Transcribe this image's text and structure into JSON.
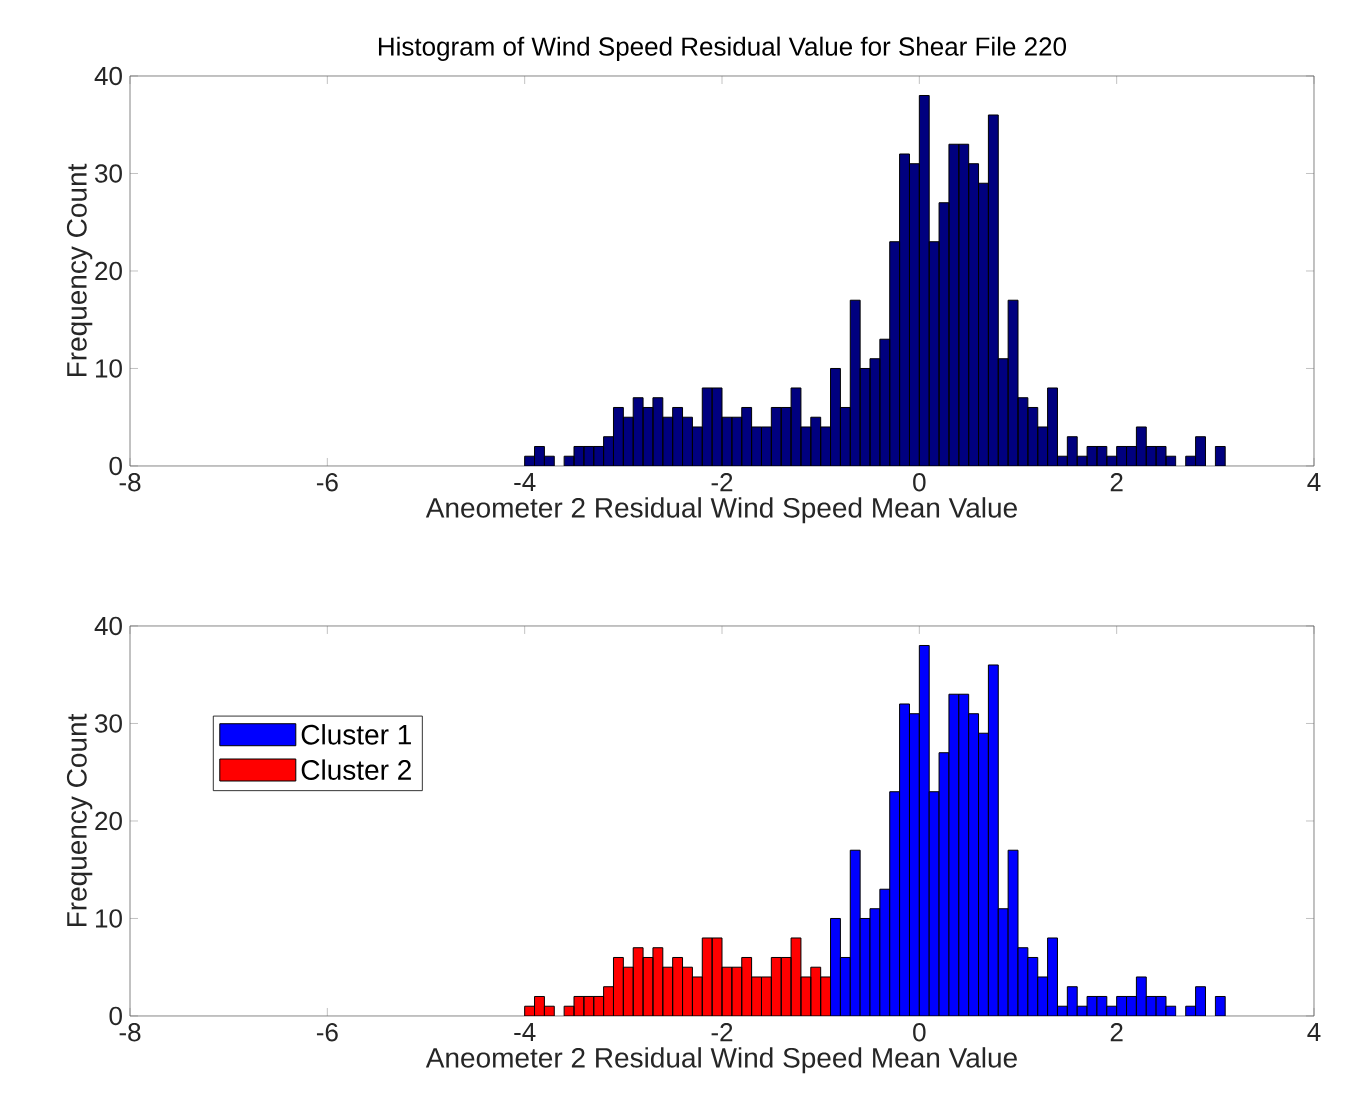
{
  "chart_data": [
    {
      "type": "histogram",
      "title": "Histogram of Wind Speed Residual Value for Shear File 220",
      "xlabel": "Aneometer 2 Residual Wind Speed Mean Value",
      "ylabel": "Frequency Count",
      "bins": [
        -4.0,
        -3.9,
        -3.8,
        -3.7,
        -3.6,
        -3.5,
        -3.4,
        -3.3,
        -3.2,
        -3.1,
        -3.0,
        -2.9,
        -2.8,
        -2.7,
        -2.6,
        -2.5,
        -2.4,
        -2.3,
        -2.2,
        -2.1,
        -2.0,
        -1.9,
        -1.8,
        -1.7,
        -1.6,
        -1.5,
        -1.4,
        -1.3,
        -1.2,
        -1.1,
        -1.0,
        -0.9,
        -0.8,
        -0.7,
        -0.6,
        -0.5,
        -0.4,
        -0.3,
        -0.2,
        -0.1,
        0.0,
        0.1,
        0.2,
        0.3,
        0.4,
        0.5,
        0.6,
        0.7,
        0.8,
        0.9,
        1.0,
        1.1,
        1.2,
        1.3,
        1.4,
        1.5,
        1.6,
        1.7,
        1.8,
        1.9,
        2.0,
        2.1,
        2.2,
        2.3,
        2.4,
        2.5,
        2.6,
        2.7,
        2.8,
        2.9,
        3.0,
        3.1
      ],
      "values": [
        1,
        2,
        1,
        0,
        1,
        2,
        2,
        2,
        3,
        6,
        5,
        7,
        6,
        7,
        5,
        6,
        5,
        4,
        8,
        8,
        5,
        5,
        6,
        4,
        4,
        6,
        6,
        8,
        4,
        5,
        4,
        10,
        6,
        17,
        10,
        11,
        13,
        23,
        32,
        31,
        38,
        23,
        27,
        33,
        33,
        31,
        29,
        36,
        11,
        17,
        7,
        6,
        4,
        8,
        1,
        3,
        1,
        2,
        2,
        1,
        2,
        2,
        4,
        2,
        2,
        1,
        0,
        1,
        3,
        0,
        2
      ],
      "color": "#00007f",
      "xlim": [
        -8,
        4
      ],
      "xticks": [
        -8,
        -6,
        -4,
        -2,
        0,
        2,
        4
      ],
      "ylim": [
        0,
        40
      ],
      "yticks": [
        0,
        10,
        20,
        30,
        40
      ]
    },
    {
      "type": "histogram",
      "xlabel": "Aneometer 2 Residual Wind Speed Mean Value",
      "ylabel": "Frequency Count",
      "bins": [
        -4.0,
        -3.9,
        -3.8,
        -3.7,
        -3.6,
        -3.5,
        -3.4,
        -3.3,
        -3.2,
        -3.1,
        -3.0,
        -2.9,
        -2.8,
        -2.7,
        -2.6,
        -2.5,
        -2.4,
        -2.3,
        -2.2,
        -2.1,
        -2.0,
        -1.9,
        -1.8,
        -1.7,
        -1.6,
        -1.5,
        -1.4,
        -1.3,
        -1.2,
        -1.1,
        -1.0,
        -0.9,
        -0.8,
        -0.7,
        -0.6,
        -0.5,
        -0.4,
        -0.3,
        -0.2,
        -0.1,
        0.0,
        0.1,
        0.2,
        0.3,
        0.4,
        0.5,
        0.6,
        0.7,
        0.8,
        0.9,
        1.0,
        1.1,
        1.2,
        1.3,
        1.4,
        1.5,
        1.6,
        1.7,
        1.8,
        1.9,
        2.0,
        2.1,
        2.2,
        2.3,
        2.4,
        2.5,
        2.6,
        2.7,
        2.8,
        2.9,
        3.0,
        3.1
      ],
      "series": [
        {
          "name": "Cluster 1",
          "color": "#0000ff",
          "values": [
            null,
            null,
            null,
            null,
            null,
            null,
            null,
            null,
            null,
            null,
            null,
            null,
            null,
            null,
            null,
            null,
            null,
            null,
            null,
            null,
            null,
            null,
            null,
            null,
            null,
            null,
            null,
            null,
            null,
            null,
            null,
            10,
            6,
            17,
            10,
            11,
            13,
            23,
            32,
            31,
            38,
            23,
            27,
            33,
            33,
            31,
            29,
            36,
            11,
            17,
            7,
            6,
            4,
            8,
            1,
            3,
            1,
            2,
            2,
            1,
            2,
            2,
            4,
            2,
            2,
            1,
            0,
            1,
            3,
            0,
            2
          ]
        },
        {
          "name": "Cluster 2",
          "color": "#ff0000",
          "values": [
            1,
            2,
            1,
            0,
            1,
            2,
            2,
            2,
            3,
            6,
            5,
            7,
            6,
            7,
            5,
            6,
            5,
            4,
            8,
            8,
            5,
            5,
            6,
            4,
            4,
            6,
            6,
            8,
            4,
            5,
            4,
            null,
            null,
            null,
            null,
            null,
            null,
            null,
            null,
            null,
            null,
            null,
            null,
            null,
            null,
            null,
            null,
            null,
            null,
            null,
            null,
            null,
            null,
            null,
            null,
            null,
            null,
            null,
            null,
            null,
            null,
            null,
            null,
            null,
            null,
            null,
            null,
            null,
            null,
            null,
            null
          ]
        }
      ],
      "legend": "top left",
      "xlim": [
        -8,
        4
      ],
      "xticks": [
        -8,
        -6,
        -4,
        -2,
        0,
        2,
        4
      ],
      "ylim": [
        0,
        40
      ],
      "yticks": [
        0,
        10,
        20,
        30,
        40
      ]
    }
  ]
}
